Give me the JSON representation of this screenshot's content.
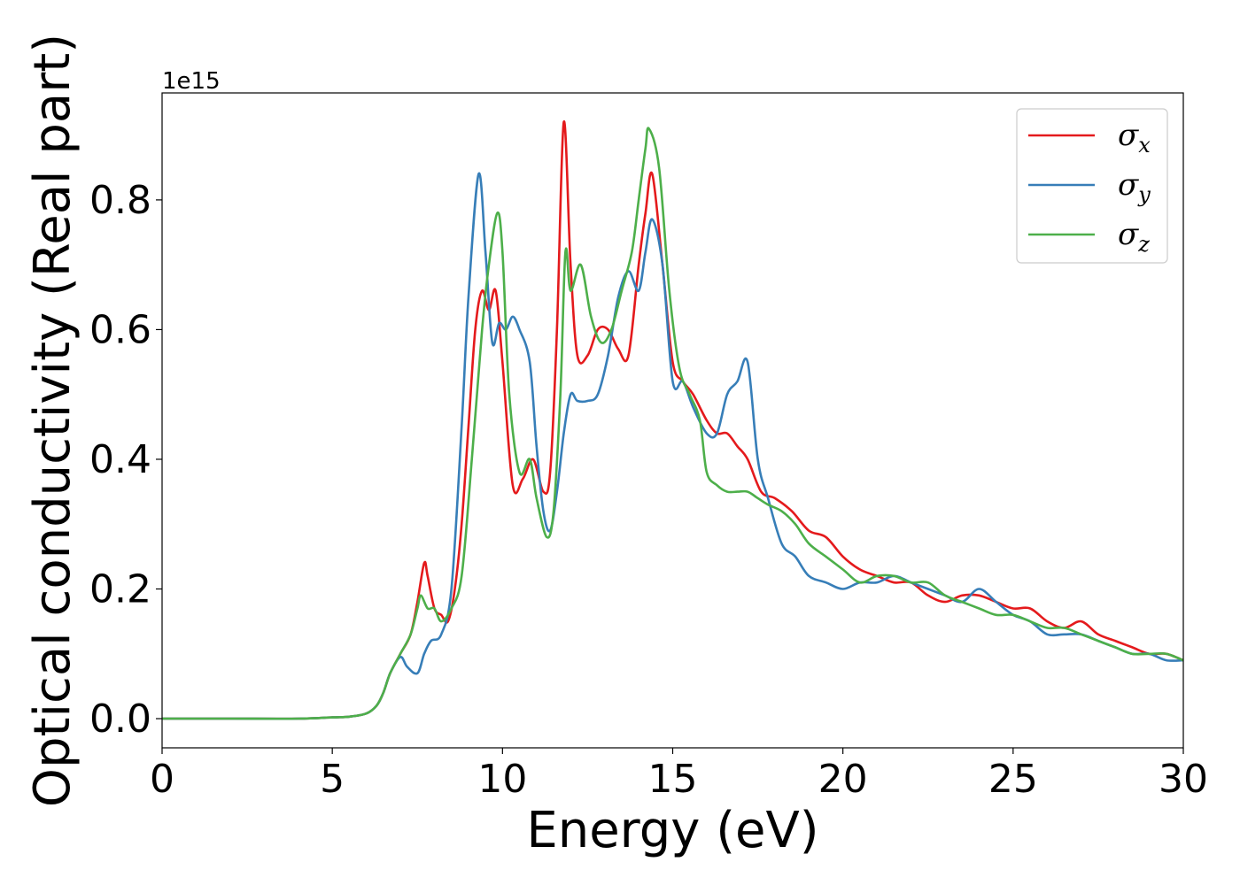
{
  "chart_data": {
    "type": "line",
    "xlabel": "Energy (eV)",
    "ylabel": "Optical conductivity (Real part)",
    "y_offset_label": "1e15",
    "xlim": [
      0,
      30
    ],
    "ylim": [
      -0.045,
      0.965
    ],
    "xticks": [
      0,
      5,
      10,
      15,
      20,
      25,
      30
    ],
    "yticks": [
      0.0,
      0.2,
      0.4,
      0.6,
      0.8
    ],
    "xtick_labels": [
      "0",
      "5",
      "10",
      "15",
      "20",
      "25",
      "30"
    ],
    "ytick_labels": [
      "0.0",
      "0.2",
      "0.4",
      "0.6",
      "0.8"
    ],
    "grid": false,
    "legend_position": "top-right",
    "series": [
      {
        "name": "σx",
        "name_base": "σ",
        "name_sub": "x",
        "color": "#e41a1c",
        "x": [
          0,
          2,
          4,
          5,
          5.5,
          6.0,
          6.3,
          6.5,
          6.7,
          7.0,
          7.3,
          7.5,
          7.7,
          7.8,
          8.0,
          8.2,
          8.4,
          8.6,
          8.8,
          9.0,
          9.2,
          9.4,
          9.6,
          9.8,
          10.0,
          10.3,
          10.6,
          10.9,
          11.2,
          11.4,
          11.6,
          11.8,
          12.0,
          12.2,
          12.5,
          12.8,
          13.1,
          13.4,
          13.7,
          14.0,
          14.2,
          14.4,
          14.7,
          15.0,
          15.3,
          15.6,
          16.0,
          16.3,
          16.6,
          16.9,
          17.2,
          17.6,
          18.0,
          18.5,
          19.0,
          19.5,
          20.0,
          20.5,
          21.0,
          21.5,
          22.0,
          22.5,
          23.0,
          23.5,
          24.0,
          24.5,
          25.0,
          25.5,
          26.0,
          26.5,
          27.0,
          27.5,
          28.0,
          28.5,
          29.0,
          29.5,
          30.0
        ],
        "y": [
          0.0,
          0.0,
          0.0,
          0.002,
          0.003,
          0.008,
          0.02,
          0.04,
          0.07,
          0.1,
          0.13,
          0.18,
          0.24,
          0.22,
          0.17,
          0.16,
          0.15,
          0.2,
          0.3,
          0.45,
          0.6,
          0.66,
          0.63,
          0.66,
          0.55,
          0.36,
          0.37,
          0.4,
          0.35,
          0.38,
          0.6,
          0.92,
          0.7,
          0.56,
          0.56,
          0.6,
          0.6,
          0.57,
          0.56,
          0.7,
          0.78,
          0.84,
          0.7,
          0.55,
          0.52,
          0.5,
          0.46,
          0.44,
          0.44,
          0.42,
          0.4,
          0.35,
          0.34,
          0.32,
          0.29,
          0.28,
          0.25,
          0.23,
          0.22,
          0.21,
          0.21,
          0.19,
          0.18,
          0.19,
          0.19,
          0.18,
          0.17,
          0.17,
          0.15,
          0.14,
          0.15,
          0.13,
          0.12,
          0.11,
          0.1,
          0.1,
          0.09
        ]
      },
      {
        "name": "σy",
        "name_base": "σ",
        "name_sub": "y",
        "color": "#377eb8",
        "x": [
          0,
          2,
          4,
          5,
          5.5,
          6.0,
          6.3,
          6.5,
          6.7,
          7.0,
          7.2,
          7.5,
          7.7,
          7.9,
          8.2,
          8.5,
          8.8,
          9.0,
          9.3,
          9.5,
          9.7,
          9.9,
          10.1,
          10.3,
          10.5,
          10.8,
          11.0,
          11.2,
          11.4,
          11.6,
          11.8,
          12.0,
          12.2,
          12.5,
          12.8,
          13.1,
          13.4,
          13.7,
          14.0,
          14.2,
          14.4,
          14.7,
          15.0,
          15.3,
          15.6,
          16.0,
          16.3,
          16.6,
          16.9,
          17.2,
          17.5,
          17.8,
          18.2,
          18.6,
          19.0,
          19.5,
          20.0,
          20.5,
          21.0,
          21.5,
          22.0,
          22.5,
          23.0,
          23.5,
          24.0,
          24.5,
          25.0,
          25.5,
          26.0,
          26.5,
          27.0,
          27.5,
          28.0,
          28.5,
          29.0,
          29.5,
          30.0
        ],
        "y": [
          0.0,
          0.0,
          0.0,
          0.002,
          0.003,
          0.008,
          0.02,
          0.04,
          0.07,
          0.095,
          0.08,
          0.07,
          0.1,
          0.12,
          0.13,
          0.2,
          0.45,
          0.65,
          0.84,
          0.72,
          0.58,
          0.61,
          0.6,
          0.62,
          0.6,
          0.55,
          0.42,
          0.32,
          0.29,
          0.35,
          0.44,
          0.5,
          0.49,
          0.49,
          0.5,
          0.56,
          0.65,
          0.69,
          0.66,
          0.72,
          0.77,
          0.7,
          0.52,
          0.52,
          0.48,
          0.44,
          0.44,
          0.5,
          0.52,
          0.55,
          0.4,
          0.34,
          0.27,
          0.25,
          0.22,
          0.21,
          0.2,
          0.21,
          0.21,
          0.22,
          0.21,
          0.2,
          0.19,
          0.18,
          0.2,
          0.18,
          0.16,
          0.15,
          0.13,
          0.13,
          0.13,
          0.12,
          0.11,
          0.1,
          0.1,
          0.09,
          0.09
        ]
      },
      {
        "name": "σz",
        "name_base": "σ",
        "name_sub": "z",
        "color": "#4daf4a",
        "x": [
          0,
          2,
          4,
          5,
          5.5,
          6.0,
          6.3,
          6.5,
          6.7,
          7.0,
          7.3,
          7.5,
          7.6,
          7.8,
          8.0,
          8.2,
          8.5,
          8.8,
          9.1,
          9.4,
          9.6,
          9.85,
          10.0,
          10.2,
          10.5,
          10.8,
          11.0,
          11.3,
          11.5,
          11.7,
          11.85,
          12.0,
          12.3,
          12.6,
          12.9,
          13.2,
          13.5,
          13.8,
          14.0,
          14.2,
          14.3,
          14.6,
          14.9,
          15.2,
          15.5,
          15.8,
          16.0,
          16.3,
          16.6,
          16.9,
          17.2,
          17.5,
          17.8,
          18.2,
          18.6,
          19.0,
          19.5,
          20.0,
          20.5,
          21.0,
          21.5,
          22.0,
          22.5,
          23.0,
          23.5,
          24.0,
          24.5,
          25.0,
          25.5,
          26.0,
          26.5,
          27.0,
          27.5,
          28.0,
          28.5,
          29.0,
          29.5,
          30.0
        ],
        "y": [
          0.0,
          0.0,
          0.0,
          0.002,
          0.003,
          0.008,
          0.02,
          0.04,
          0.07,
          0.1,
          0.13,
          0.17,
          0.19,
          0.17,
          0.17,
          0.15,
          0.17,
          0.22,
          0.4,
          0.6,
          0.7,
          0.78,
          0.72,
          0.5,
          0.38,
          0.4,
          0.34,
          0.28,
          0.32,
          0.5,
          0.72,
          0.66,
          0.7,
          0.62,
          0.58,
          0.6,
          0.66,
          0.72,
          0.8,
          0.88,
          0.91,
          0.85,
          0.66,
          0.54,
          0.5,
          0.46,
          0.38,
          0.36,
          0.35,
          0.35,
          0.35,
          0.34,
          0.33,
          0.32,
          0.3,
          0.27,
          0.25,
          0.23,
          0.21,
          0.22,
          0.22,
          0.21,
          0.21,
          0.19,
          0.18,
          0.17,
          0.16,
          0.16,
          0.15,
          0.14,
          0.14,
          0.13,
          0.12,
          0.11,
          0.1,
          0.1,
          0.1,
          0.09
        ]
      }
    ]
  }
}
